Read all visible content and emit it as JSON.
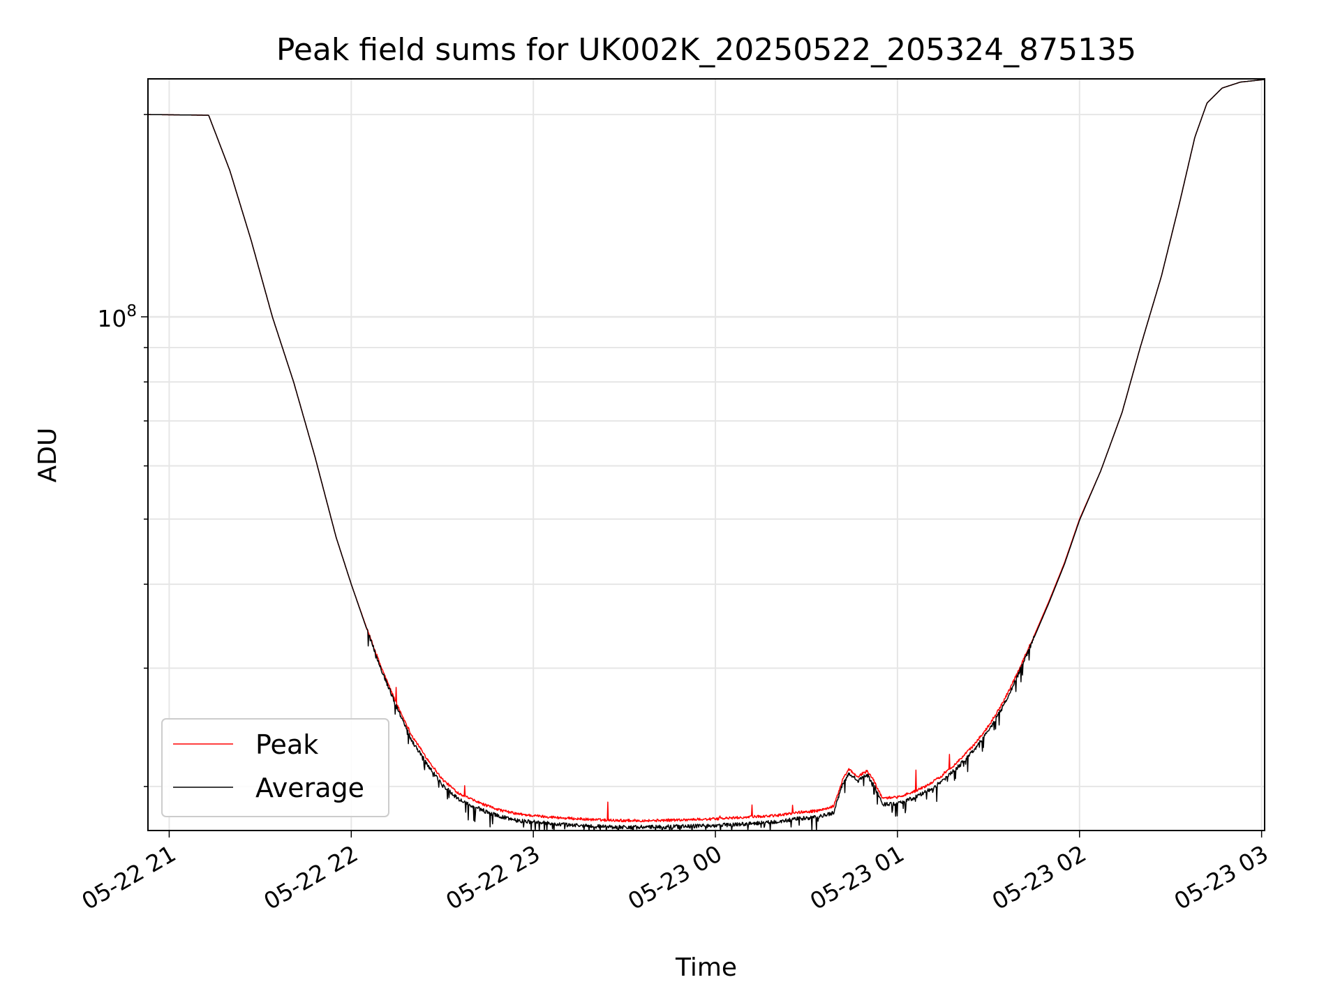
{
  "chart_data": {
    "type": "line",
    "title": "Peak field sums for UK002K_20250522_205324_875135",
    "xlabel": "Time",
    "ylabel": "ADU",
    "y_scale": "log",
    "grid": true,
    "legend_position": "lower-left",
    "x_ticks": [
      "05-22 21",
      "05-22 22",
      "05-22 23",
      "05-23 00",
      "05-23 01",
      "05-23 02",
      "05-23 03"
    ],
    "y_tick_labels": [
      {
        "base": "10",
        "exponent": "8"
      }
    ],
    "xlim": [
      "2025-05-22 20:53",
      "2025-05-23 03:01"
    ],
    "ylim": [
      17200000,
      226000000
    ],
    "series": [
      {
        "name": "Peak",
        "color": "#ff0000",
        "points": [
          [
            "2025-05-22 20:53",
            200000000
          ],
          [
            "2025-05-22 21:13",
            199500000
          ],
          [
            "2025-05-22 21:20",
            165000000
          ],
          [
            "2025-05-22 21:27",
            130000000
          ],
          [
            "2025-05-22 21:34",
            100000000
          ],
          [
            "2025-05-22 21:41",
            80000000
          ],
          [
            "2025-05-22 21:48",
            62000000
          ],
          [
            "2025-05-22 21:55",
            47000000
          ],
          [
            "2025-05-22 22:00",
            40000000
          ],
          [
            "2025-05-22 22:05",
            34500000
          ],
          [
            "2025-05-22 22:10",
            30000000
          ],
          [
            "2025-05-22 22:15",
            26500000
          ],
          [
            "2025-05-22 22:20",
            23800000
          ],
          [
            "2025-05-22 22:25",
            22000000
          ],
          [
            "2025-05-22 22:30",
            20500000
          ],
          [
            "2025-05-22 22:35",
            19600000
          ],
          [
            "2025-05-22 22:40",
            19100000
          ],
          [
            "2025-05-22 22:45",
            18700000
          ],
          [
            "2025-05-22 22:50",
            18400000
          ],
          [
            "2025-05-22 22:55",
            18200000
          ],
          [
            "2025-05-22 23:00",
            18100000
          ],
          [
            "2025-05-22 23:10",
            17950000
          ],
          [
            "2025-05-22 23:20",
            17850000
          ],
          [
            "2025-05-22 23:30",
            17800000
          ],
          [
            "2025-05-22 23:40",
            17800000
          ],
          [
            "2025-05-22 23:50",
            17850000
          ],
          [
            "2025-05-23 00:00",
            17900000
          ],
          [
            "2025-05-23 00:10",
            18000000
          ],
          [
            "2025-05-23 00:20",
            18100000
          ],
          [
            "2025-05-23 00:27",
            18300000
          ],
          [
            "2025-05-23 00:34",
            18400000
          ],
          [
            "2025-05-23 00:39",
            18700000
          ],
          [
            "2025-05-23 00:42",
            20500000
          ],
          [
            "2025-05-23 00:44",
            21200000
          ],
          [
            "2025-05-23 00:47",
            20700000
          ],
          [
            "2025-05-23 00:50",
            21100000
          ],
          [
            "2025-05-23 00:52",
            20500000
          ],
          [
            "2025-05-23 00:55",
            19200000
          ],
          [
            "2025-05-23 01:00",
            19300000
          ],
          [
            "2025-05-23 01:05",
            19600000
          ],
          [
            "2025-05-23 01:10",
            20100000
          ],
          [
            "2025-05-23 01:15",
            20800000
          ],
          [
            "2025-05-23 01:20",
            21800000
          ],
          [
            "2025-05-23 01:25",
            23000000
          ],
          [
            "2025-05-23 01:30",
            24600000
          ],
          [
            "2025-05-23 01:35",
            26800000
          ],
          [
            "2025-05-23 01:40",
            29800000
          ],
          [
            "2025-05-23 01:45",
            33500000
          ],
          [
            "2025-05-23 01:50",
            37800000
          ],
          [
            "2025-05-23 01:55",
            43000000
          ],
          [
            "2025-05-23 02:00",
            50000000
          ],
          [
            "2025-05-23 02:07",
            59000000
          ],
          [
            "2025-05-23 02:14",
            72000000
          ],
          [
            "2025-05-23 02:20",
            90000000
          ],
          [
            "2025-05-23 02:27",
            115000000
          ],
          [
            "2025-05-23 02:33",
            148000000
          ],
          [
            "2025-05-23 02:38",
            185000000
          ],
          [
            "2025-05-23 02:42",
            208000000
          ],
          [
            "2025-05-23 02:47",
            219000000
          ],
          [
            "2025-05-23 02:53",
            223500000
          ],
          [
            "2025-05-23 03:01",
            225500000
          ]
        ]
      },
      {
        "name": "Average",
        "color": "#000000",
        "points": [
          [
            "2025-05-22 20:53",
            200000000
          ],
          [
            "2025-05-22 21:13",
            199500000
          ],
          [
            "2025-05-22 21:20",
            165000000
          ],
          [
            "2025-05-22 21:27",
            130000000
          ],
          [
            "2025-05-22 21:34",
            100000000
          ],
          [
            "2025-05-22 21:41",
            80000000
          ],
          [
            "2025-05-22 21:48",
            62000000
          ],
          [
            "2025-05-22 21:55",
            47000000
          ],
          [
            "2025-05-22 22:00",
            40000000
          ],
          [
            "2025-05-22 22:05",
            34400000
          ],
          [
            "2025-05-22 22:10",
            29800000
          ],
          [
            "2025-05-22 22:15",
            26200000
          ],
          [
            "2025-05-22 22:20",
            23400000
          ],
          [
            "2025-05-22 22:25",
            21600000
          ],
          [
            "2025-05-22 22:30",
            20100000
          ],
          [
            "2025-05-22 22:35",
            19200000
          ],
          [
            "2025-05-22 22:40",
            18700000
          ],
          [
            "2025-05-22 22:45",
            18300000
          ],
          [
            "2025-05-22 22:50",
            18000000
          ],
          [
            "2025-05-22 22:55",
            17800000
          ],
          [
            "2025-05-22 23:00",
            17700000
          ],
          [
            "2025-05-22 23:10",
            17550000
          ],
          [
            "2025-05-22 23:20",
            17450000
          ],
          [
            "2025-05-22 23:30",
            17400000
          ],
          [
            "2025-05-22 23:40",
            17400000
          ],
          [
            "2025-05-22 23:50",
            17450000
          ],
          [
            "2025-05-23 00:00",
            17500000
          ],
          [
            "2025-05-23 00:10",
            17600000
          ],
          [
            "2025-05-23 00:20",
            17700000
          ],
          [
            "2025-05-23 00:27",
            17900000
          ],
          [
            "2025-05-23 00:34",
            18000000
          ],
          [
            "2025-05-23 00:39",
            18300000
          ],
          [
            "2025-05-23 00:42",
            20200000
          ],
          [
            "2025-05-23 00:44",
            20900000
          ],
          [
            "2025-05-23 00:47",
            20400000
          ],
          [
            "2025-05-23 00:50",
            20800000
          ],
          [
            "2025-05-23 00:52",
            20200000
          ],
          [
            "2025-05-23 00:55",
            18800000
          ],
          [
            "2025-05-23 01:00",
            18900000
          ],
          [
            "2025-05-23 01:05",
            19200000
          ],
          [
            "2025-05-23 01:10",
            19700000
          ],
          [
            "2025-05-23 01:15",
            20400000
          ],
          [
            "2025-05-23 01:20",
            21400000
          ],
          [
            "2025-05-23 01:25",
            22600000
          ],
          [
            "2025-05-23 01:30",
            24200000
          ],
          [
            "2025-05-23 01:35",
            26400000
          ],
          [
            "2025-05-23 01:40",
            29500000
          ],
          [
            "2025-05-23 01:45",
            33300000
          ],
          [
            "2025-05-23 01:50",
            37600000
          ],
          [
            "2025-05-23 01:55",
            42800000
          ],
          [
            "2025-05-23 02:00",
            49800000
          ],
          [
            "2025-05-23 02:07",
            59000000
          ],
          [
            "2025-05-23 02:14",
            72000000
          ],
          [
            "2025-05-23 02:20",
            90000000
          ],
          [
            "2025-05-23 02:27",
            115000000
          ],
          [
            "2025-05-23 02:33",
            148000000
          ],
          [
            "2025-05-23 02:38",
            185000000
          ],
          [
            "2025-05-23 02:42",
            208000000
          ],
          [
            "2025-05-23 02:47",
            219000000
          ],
          [
            "2025-05-23 02:53",
            223500000
          ],
          [
            "2025-05-23 03:01",
            225500000
          ]
        ]
      }
    ]
  }
}
